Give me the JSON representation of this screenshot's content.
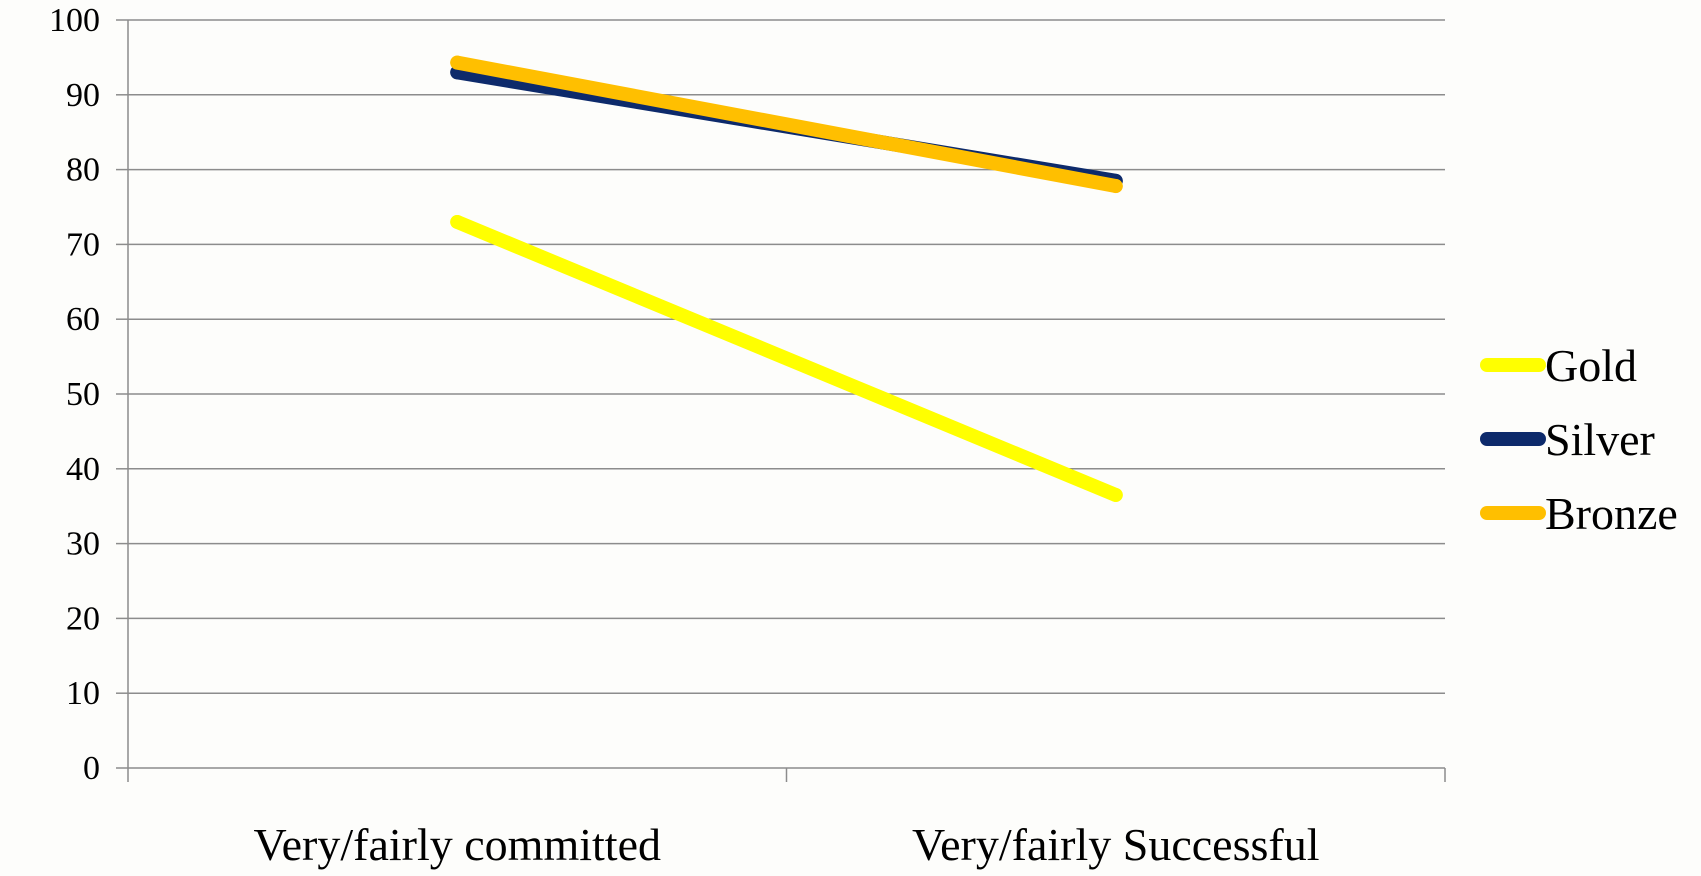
{
  "chart_data": {
    "type": "line",
    "categories": [
      "Very/fairly committed",
      "Very/fairly Successful"
    ],
    "series": [
      {
        "name": "Gold",
        "color": "#ffff00",
        "values": [
          73,
          36.5
        ]
      },
      {
        "name": "Silver",
        "color": "#0d2a6b",
        "values": [
          93,
          78.5
        ]
      },
      {
        "name": "Bronze",
        "color": "#ffbf00",
        "values": [
          94.3,
          77.8
        ]
      }
    ],
    "ylim": [
      0,
      100
    ],
    "y_ticks": [
      0,
      10,
      20,
      30,
      40,
      50,
      60,
      70,
      80,
      90,
      100
    ],
    "y_tick_labels": [
      "0",
      "10",
      "20",
      "30",
      "40",
      "50",
      "60",
      "70",
      "80",
      "90",
      "100"
    ],
    "grid": true,
    "legend_position": "right",
    "gridline_color": "#8c8c8c",
    "background_color": "#fdfdfb"
  }
}
